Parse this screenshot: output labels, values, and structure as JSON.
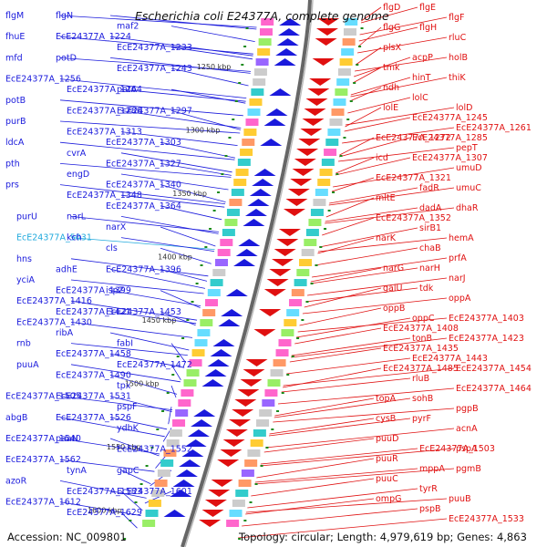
{
  "title": "Escherichia coli E24377A, complete genome",
  "accession": "Accession: NC_009801",
  "summary": "Topology: circular; Length: 4,979,619 bp; Genes: 4,863",
  "colors": {
    "forward": "#1a1adc",
    "reverse": "#e01010",
    "highlight": "#22aadd",
    "backbone": "#666666",
    "ticks": "#1a8a1a"
  },
  "kbp_labels": [
    "1250 kbp",
    "1300 kbp",
    "1350 kbp",
    "1400 kbp",
    "1450 kbp",
    "1500 kbp",
    "1550 kbp",
    "1600 kbp"
  ],
  "left_genes": [
    "flgM",
    "flgN",
    "maf2",
    "fhuE",
    "EcE24377A_1224",
    "EcE24377A_1233",
    "mfd",
    "potD",
    "EcE24377A_1243",
    "EcE24377A_1256",
    "EcE24377A_1264",
    "potA",
    "potB",
    "EcE24377A_1286",
    "EcE24377A_1297",
    "purB",
    "EcE24377A_1313",
    "EcE24377A_1303",
    "ldcA",
    "cvrA",
    "EcE24377A_1327",
    "pth",
    "engD",
    "EcE24377A_1340",
    "prs",
    "EcE24377A_1348",
    "EcE24377A_1364",
    "purU",
    "narL",
    "narX",
    "EcE24377A_5031",
    "kch",
    "cls",
    "hns",
    "adhE",
    "EcE24377A_1396",
    "yciA",
    "EcE24377A_1399",
    "ispZ",
    "EcE24377A_1416",
    "EcE24377A_1421",
    "EcE24377A_1453",
    "EcE24377A_1430",
    "ribA",
    "fabI",
    "rnb",
    "EcE24377A_1458",
    "EcE24377A_1472",
    "puuA",
    "EcE24377A_1490",
    "tpx",
    "EcE24377A_1505",
    "EcE24377A_1531",
    "pspF",
    "abgB",
    "EcE24377A_1526",
    "ydbK",
    "EcE24377A_1540",
    "paaN",
    "EcE24377A_1552",
    "EcE24377A_1562",
    "tynA",
    "gapC",
    "azoR",
    "EcE24377A_1583",
    "EcE24377A_1601",
    "EcE24377A_1612",
    "EcE24377A_1629"
  ],
  "right_genes": [
    "flgD",
    "flgE",
    "flgF",
    "flgG",
    "flgH",
    "rluC",
    "plsX",
    "acpP",
    "holB",
    "tmk",
    "hinT",
    "thiK",
    "ndh",
    "lolC",
    "lolD",
    "lolE",
    "EcE24377A_1245",
    "EcE24377A_1261",
    "EcE24377A_1272",
    "EcE24377A_1285",
    "pepT",
    "icd",
    "EcE24377A_1307",
    "umuD",
    "EcE24377A_1321",
    "fadR",
    "umuC",
    "mltE",
    "dadA",
    "dhaR",
    "EcE24377A_1352",
    "sirB1",
    "hemA",
    "narK",
    "chaB",
    "prfA",
    "narG",
    "narH",
    "narJ",
    "galU",
    "tdk",
    "oppA",
    "oppB",
    "oppC",
    "EcE24377A_1403",
    "EcE24377A_1408",
    "tonB",
    "EcE24377A_1423",
    "EcE24377A_1435",
    "EcE24377A_1443",
    "EcE24377A_1454",
    "EcE24377A_1485",
    "rluB",
    "EcE24377A_1464",
    "topA",
    "sohB",
    "pgpB",
    "cysB",
    "pyrF",
    "acnA",
    "puuD",
    "EcE24377A_1503",
    "pspA",
    "puuR",
    "mppA",
    "pgmB",
    "puuC",
    "tyrR",
    "puuB",
    "ompG",
    "pspB",
    "EcE24377A_1533"
  ]
}
